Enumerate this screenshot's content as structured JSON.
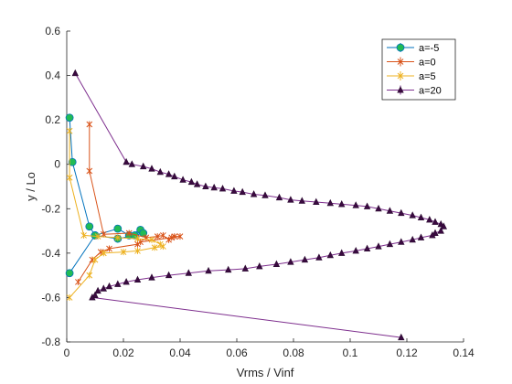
{
  "chart_data": {
    "type": "line",
    "title": "",
    "xlabel": "Vrms / Vinf",
    "ylabel": "y / Lo",
    "xlim": [
      0,
      0.14
    ],
    "ylim": [
      -0.8,
      0.6
    ],
    "xticks": [
      0,
      0.02,
      0.04,
      0.06,
      0.08,
      0.1,
      0.12,
      0.14
    ],
    "xtick_labels": [
      "0",
      "0.02",
      "0.04",
      "0.06",
      "0.08",
      "0.1",
      "0.12",
      "0.14"
    ],
    "yticks": [
      -0.8,
      -0.6,
      -0.4,
      -0.2,
      0,
      0.2,
      0.4,
      0.6
    ],
    "ytick_labels": [
      "-0.8",
      "-0.6",
      "-0.4",
      "-0.2",
      "0",
      "0.2",
      "0.4",
      "0.6"
    ],
    "grid": false,
    "legend": "top-right",
    "series": [
      {
        "name": "a=-5",
        "color": "#0072BD",
        "marker": "circle",
        "marker_fill": "#22BB55",
        "points": [
          [
            0.001,
            0.21
          ],
          [
            0.002,
            0.01
          ],
          [
            0.008,
            -0.28
          ],
          [
            0.01,
            -0.32
          ],
          [
            0.018,
            -0.29
          ],
          [
            0.022,
            -0.32
          ],
          [
            0.026,
            -0.295
          ],
          [
            0.027,
            -0.31
          ],
          [
            0.024,
            -0.32
          ],
          [
            0.018,
            -0.335
          ],
          [
            0.01,
            -0.32
          ],
          [
            0.001,
            -0.49
          ]
        ]
      },
      {
        "name": "a=0",
        "color": "#D95319",
        "marker": "x",
        "points": [
          [
            0.008,
            0.18
          ],
          [
            0.008,
            -0.03
          ],
          [
            0.013,
            -0.315
          ],
          [
            0.022,
            -0.31
          ],
          [
            0.028,
            -0.33
          ],
          [
            0.032,
            -0.325
          ],
          [
            0.034,
            -0.32
          ],
          [
            0.036,
            -0.34
          ],
          [
            0.038,
            -0.325
          ],
          [
            0.04,
            -0.325
          ],
          [
            0.037,
            -0.33
          ],
          [
            0.026,
            -0.35
          ],
          [
            0.025,
            -0.36
          ],
          [
            0.015,
            -0.38
          ],
          [
            0.012,
            -0.395
          ],
          [
            0.009,
            -0.43
          ],
          [
            0.004,
            -0.53
          ]
        ]
      },
      {
        "name": "a=5",
        "color": "#EDB120",
        "marker": "x",
        "points": [
          [
            0.001,
            0.15
          ],
          [
            0.001,
            -0.06
          ],
          [
            0.006,
            -0.32
          ],
          [
            0.011,
            -0.325
          ],
          [
            0.018,
            -0.33
          ],
          [
            0.025,
            -0.335
          ],
          [
            0.03,
            -0.34
          ],
          [
            0.033,
            -0.36
          ],
          [
            0.034,
            -0.37
          ],
          [
            0.031,
            -0.375
          ],
          [
            0.025,
            -0.39
          ],
          [
            0.02,
            -0.395
          ],
          [
            0.013,
            -0.4
          ],
          [
            0.01,
            -0.43
          ],
          [
            0.008,
            -0.5
          ],
          [
            0.001,
            -0.6
          ]
        ]
      },
      {
        "name": "a=20",
        "color": "#7E2F8E",
        "marker": "triangle",
        "marker_fill": "#3A0A40",
        "points": [
          [
            0.003,
            0.41
          ],
          [
            0.021,
            0.01
          ],
          [
            0.023,
            0.0
          ],
          [
            0.027,
            -0.01
          ],
          [
            0.03,
            -0.02
          ],
          [
            0.033,
            -0.035
          ],
          [
            0.036,
            -0.045
          ],
          [
            0.038,
            -0.055
          ],
          [
            0.041,
            -0.07
          ],
          [
            0.044,
            -0.08
          ],
          [
            0.046,
            -0.09
          ],
          [
            0.049,
            -0.1
          ],
          [
            0.052,
            -0.105
          ],
          [
            0.055,
            -0.11
          ],
          [
            0.059,
            -0.12
          ],
          [
            0.062,
            -0.125
          ],
          [
            0.066,
            -0.135
          ],
          [
            0.07,
            -0.14
          ],
          [
            0.075,
            -0.15
          ],
          [
            0.079,
            -0.16
          ],
          [
            0.083,
            -0.165
          ],
          [
            0.088,
            -0.17
          ],
          [
            0.093,
            -0.175
          ],
          [
            0.097,
            -0.18
          ],
          [
            0.102,
            -0.185
          ],
          [
            0.106,
            -0.19
          ],
          [
            0.11,
            -0.2
          ],
          [
            0.114,
            -0.21
          ],
          [
            0.118,
            -0.22
          ],
          [
            0.122,
            -0.23
          ],
          [
            0.125,
            -0.24
          ],
          [
            0.128,
            -0.25
          ],
          [
            0.13,
            -0.26
          ],
          [
            0.132,
            -0.27
          ],
          [
            0.133,
            -0.28
          ],
          [
            0.132,
            -0.3
          ],
          [
            0.13,
            -0.31
          ],
          [
            0.129,
            -0.32
          ],
          [
            0.125,
            -0.33
          ],
          [
            0.122,
            -0.34
          ],
          [
            0.118,
            -0.35
          ],
          [
            0.114,
            -0.36
          ],
          [
            0.11,
            -0.37
          ],
          [
            0.106,
            -0.38
          ],
          [
            0.102,
            -0.39
          ],
          [
            0.097,
            -0.4
          ],
          [
            0.093,
            -0.41
          ],
          [
            0.089,
            -0.42
          ],
          [
            0.084,
            -0.43
          ],
          [
            0.079,
            -0.44
          ],
          [
            0.074,
            -0.45
          ],
          [
            0.068,
            -0.46
          ],
          [
            0.063,
            -0.47
          ],
          [
            0.057,
            -0.475
          ],
          [
            0.05,
            -0.48
          ],
          [
            0.043,
            -0.49
          ],
          [
            0.036,
            -0.5
          ],
          [
            0.03,
            -0.51
          ],
          [
            0.025,
            -0.52
          ],
          [
            0.021,
            -0.53
          ],
          [
            0.018,
            -0.54
          ],
          [
            0.015,
            -0.55
          ],
          [
            0.013,
            -0.56
          ],
          [
            0.011,
            -0.57
          ],
          [
            0.01,
            -0.59
          ],
          [
            0.009,
            -0.6
          ],
          [
            0.118,
            -0.78
          ]
        ]
      }
    ]
  }
}
